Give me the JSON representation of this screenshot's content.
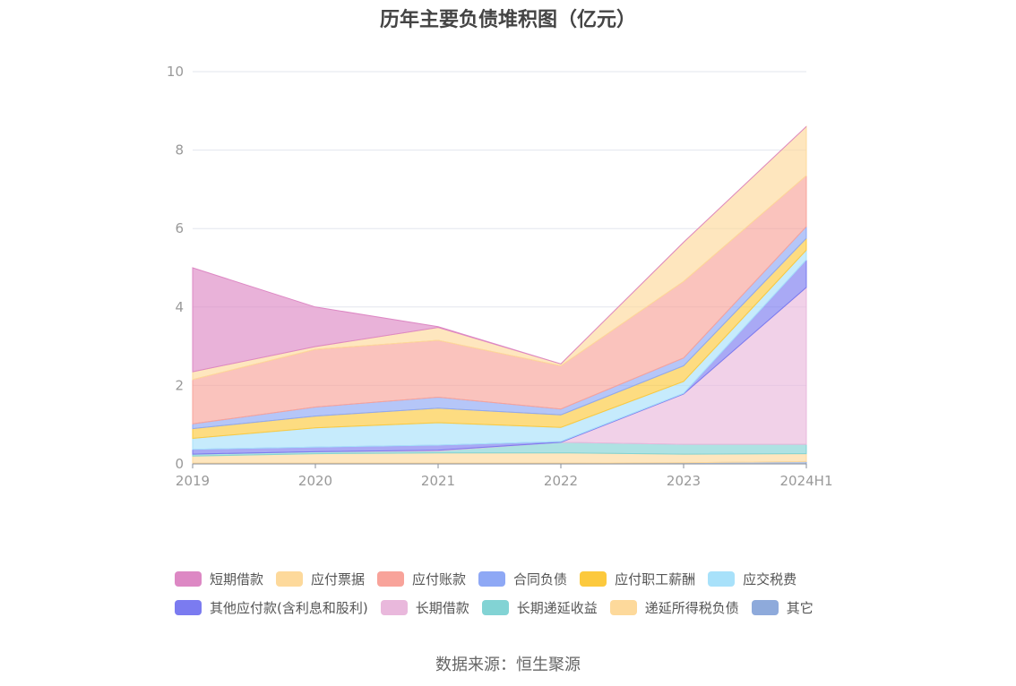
{
  "chart_data": {
    "type": "area",
    "stacked": true,
    "title": "历年主要负债堆积图（亿元）",
    "xlabel": "",
    "ylabel": "",
    "ylim": [
      0,
      10
    ],
    "yticks": [
      "0",
      "2",
      "4",
      "6",
      "8",
      "10"
    ],
    "categories": [
      "2019",
      "2020",
      "2021",
      "2022",
      "2023",
      "2024H1"
    ],
    "legend_position": "bottom",
    "series": [
      {
        "name": "短期借款",
        "color": "#dd88c4",
        "values": [
          2.65,
          1.01,
          0.02,
          0.0,
          0.0,
          0.0
        ]
      },
      {
        "name": "应付票据",
        "color": "#fdd99b",
        "values": [
          0.2,
          0.07,
          0.33,
          0.05,
          1.0,
          1.25
        ]
      },
      {
        "name": "应付账款",
        "color": "#f8a39a",
        "values": [
          1.13,
          1.47,
          1.45,
          1.1,
          1.95,
          1.3
        ]
      },
      {
        "name": "合同负债",
        "color": "#8ea8f5",
        "values": [
          0.12,
          0.23,
          0.28,
          0.15,
          0.2,
          0.3
        ]
      },
      {
        "name": "应付职工薪酬",
        "color": "#fcc93d",
        "values": [
          0.25,
          0.3,
          0.37,
          0.32,
          0.4,
          0.3
        ]
      },
      {
        "name": "应交税费",
        "color": "#a8e1fa",
        "values": [
          0.28,
          0.49,
          0.57,
          0.36,
          0.3,
          0.25
        ]
      },
      {
        "name": "其他应付款(含利息和股利)",
        "color": "#7b7bf0",
        "values": [
          0.12,
          0.12,
          0.13,
          0.02,
          0.02,
          0.7
        ]
      },
      {
        "name": "长期借款",
        "color": "#e9b8dc",
        "values": [
          0.0,
          0.0,
          0.02,
          0.0,
          1.28,
          4.0
        ]
      },
      {
        "name": "长期递延收益",
        "color": "#82d3d4",
        "values": [
          0.05,
          0.05,
          0.05,
          0.27,
          0.25,
          0.24
        ]
      },
      {
        "name": "递延所得税负债",
        "color": "#fdd99b",
        "values": [
          0.18,
          0.24,
          0.26,
          0.26,
          0.22,
          0.2
        ]
      },
      {
        "name": "其它",
        "color": "#8eaadb",
        "values": [
          0.02,
          0.02,
          0.02,
          0.02,
          0.03,
          0.06
        ]
      }
    ],
    "legend_rows": [
      6,
      5
    ]
  },
  "footer": {
    "source": "数据来源：恒生聚源"
  }
}
